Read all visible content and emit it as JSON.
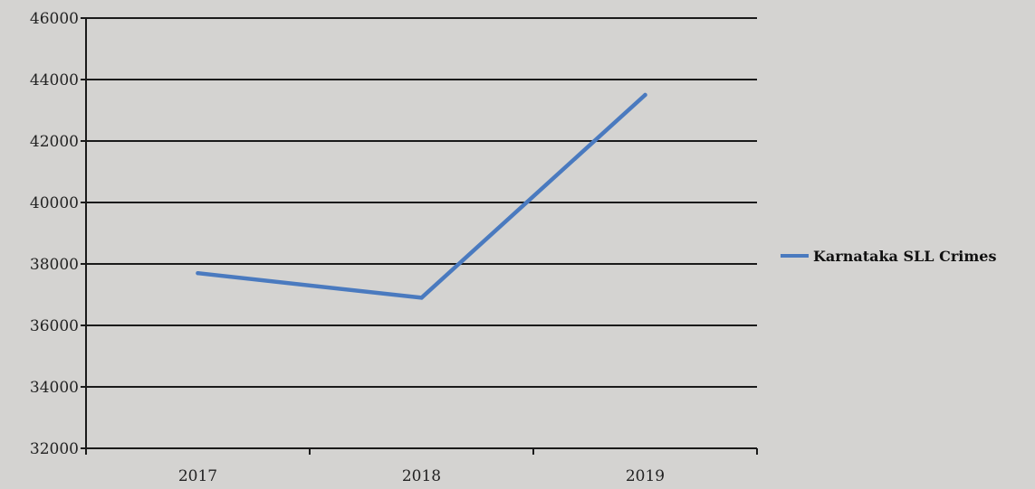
{
  "chart_data": {
    "type": "line",
    "title": "",
    "xlabel": "",
    "ylabel": "",
    "categories": [
      "2017",
      "2018",
      "2019"
    ],
    "series": [
      {
        "name": "Karnataka SLL Crimes",
        "values": [
          37700,
          36900,
          43500
        ],
        "color": "#4a7abf"
      }
    ],
    "ylim": [
      32000,
      46000
    ],
    "yticks": [
      "32000",
      "34000",
      "36000",
      "38000",
      "40000",
      "42000",
      "44000",
      "46000"
    ],
    "grid": true,
    "legend_position": "right"
  }
}
